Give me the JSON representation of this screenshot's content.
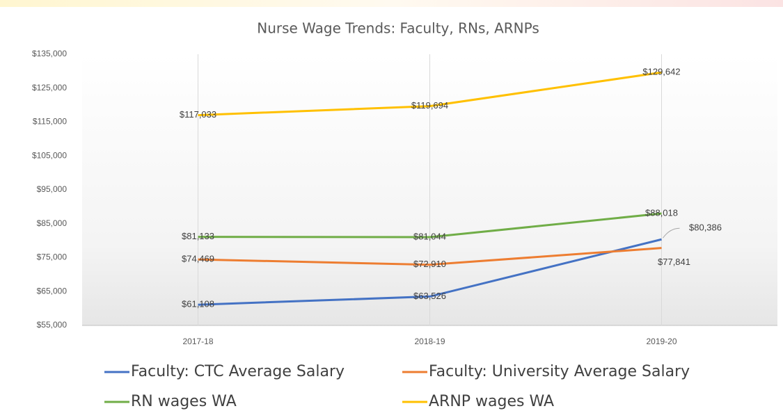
{
  "chart_data": {
    "type": "line",
    "title": "Nurse Wage Trends: Faculty, RNs, ARNPs",
    "categories": [
      "2017-18",
      "2018-19",
      "2019-20"
    ],
    "series": [
      {
        "name": "Faculty: CTC Average Salary",
        "color": "#4472c4",
        "values": [
          61108,
          63526,
          80386
        ],
        "value_labels": [
          "$61,108",
          "$63,526",
          "$80,386"
        ]
      },
      {
        "name": "Faculty: University Average Salary",
        "color": "#ed7d31",
        "values": [
          74469,
          72910,
          77841
        ],
        "value_labels": [
          "$74,469",
          "$72,910",
          "$77,841"
        ]
      },
      {
        "name": "RN wages WA",
        "color": "#70ad47",
        "values": [
          81133,
          81044,
          88018
        ],
        "value_labels": [
          "$81,133",
          "$81,044",
          "$88,018"
        ]
      },
      {
        "name": "ARNP wages WA",
        "color": "#ffc000",
        "values": [
          117033,
          119694,
          129642
        ],
        "value_labels": [
          "$117,033",
          "$119,694",
          "$129,642"
        ]
      }
    ],
    "ylim": [
      55000,
      135000
    ],
    "yticks": [
      {
        "value": 55000,
        "label": "$55,000"
      },
      {
        "value": 65000,
        "label": "$65,000"
      },
      {
        "value": 75000,
        "label": "$75,000"
      },
      {
        "value": 85000,
        "label": "$85,000"
      },
      {
        "value": 95000,
        "label": "$95,000"
      },
      {
        "value": 105000,
        "label": "$105,000"
      },
      {
        "value": 115000,
        "label": "$115,000"
      },
      {
        "value": 125000,
        "label": "$125,000"
      },
      {
        "value": 135000,
        "label": "$135,000"
      }
    ],
    "grid": true,
    "legend": "bottom"
  }
}
